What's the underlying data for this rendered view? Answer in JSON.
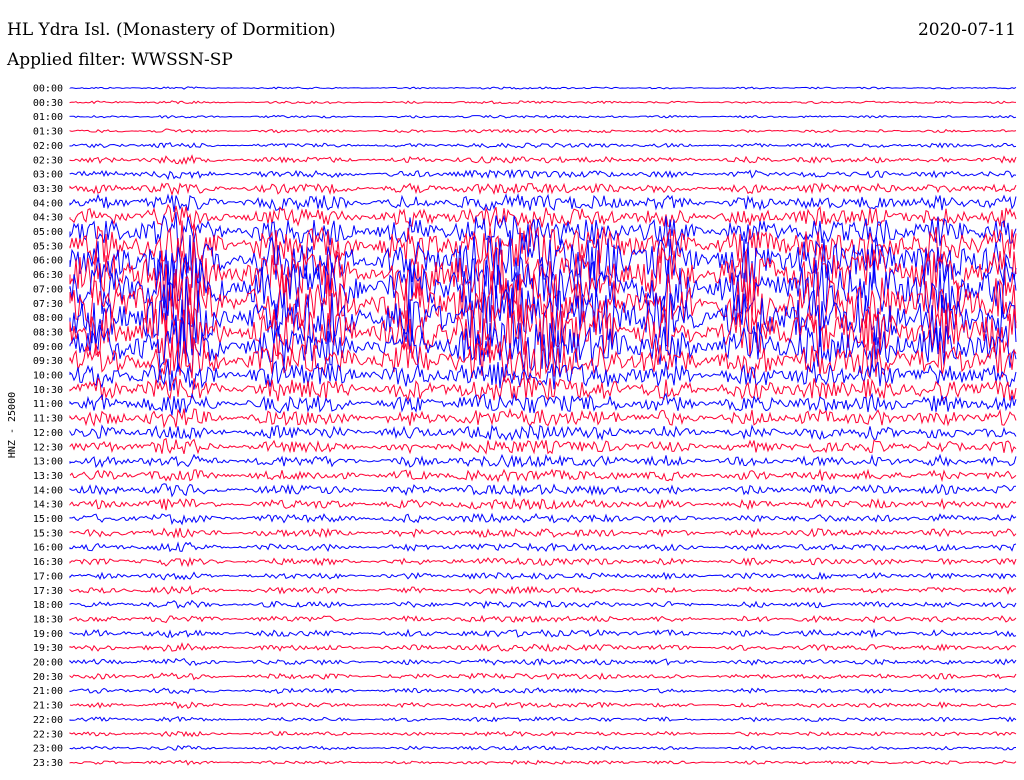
{
  "header": {
    "station_title": "HL Ydra Isl. (Monastery of Dormition)",
    "date": "2020-07-11",
    "filter_text": "Applied filter: WWSSN-SP"
  },
  "chart_data": {
    "type": "line",
    "title": "HL Ydra Isl. (Monastery of Dormition)",
    "ylabel": "HNZ - 25000",
    "row_labels": [
      "00:00",
      "00:30",
      "01:00",
      "01:30",
      "02:00",
      "02:30",
      "03:00",
      "03:30",
      "04:00",
      "04:30",
      "05:00",
      "05:30",
      "06:00",
      "06:30",
      "07:00",
      "07:30",
      "08:00",
      "08:30",
      "09:00",
      "09:30",
      "10:00",
      "10:30",
      "11:00",
      "11:30",
      "12:00",
      "12:30",
      "13:00",
      "13:30",
      "14:00",
      "14:30",
      "15:00",
      "15:30",
      "16:00",
      "16:30",
      "17:00",
      "17:30",
      "18:00",
      "18:30",
      "19:00",
      "19:30",
      "20:00",
      "20:30",
      "21:00",
      "21:30",
      "22:00",
      "22:30",
      "23:00",
      "23:30"
    ],
    "series": [
      {
        "color": "#0000ff"
      },
      {
        "color": "#ff0033"
      }
    ],
    "row_activity": [
      0.15,
      0.2,
      0.2,
      0.25,
      0.35,
      0.5,
      0.6,
      0.8,
      1.2,
      1.6,
      2.4,
      3.2,
      4.0,
      4.6,
      5.0,
      5.0,
      4.8,
      4.2,
      3.6,
      3.0,
      2.2,
      1.8,
      1.5,
      1.3,
      1.1,
      1.0,
      0.9,
      0.85,
      0.8,
      0.75,
      0.7,
      0.65,
      0.6,
      0.55,
      0.5,
      0.5,
      0.5,
      0.5,
      0.55,
      0.5,
      0.45,
      0.45,
      0.4,
      0.4,
      0.35,
      0.35,
      0.3,
      0.3
    ],
    "x_range_minutes": [
      0,
      30
    ],
    "grid": false
  }
}
